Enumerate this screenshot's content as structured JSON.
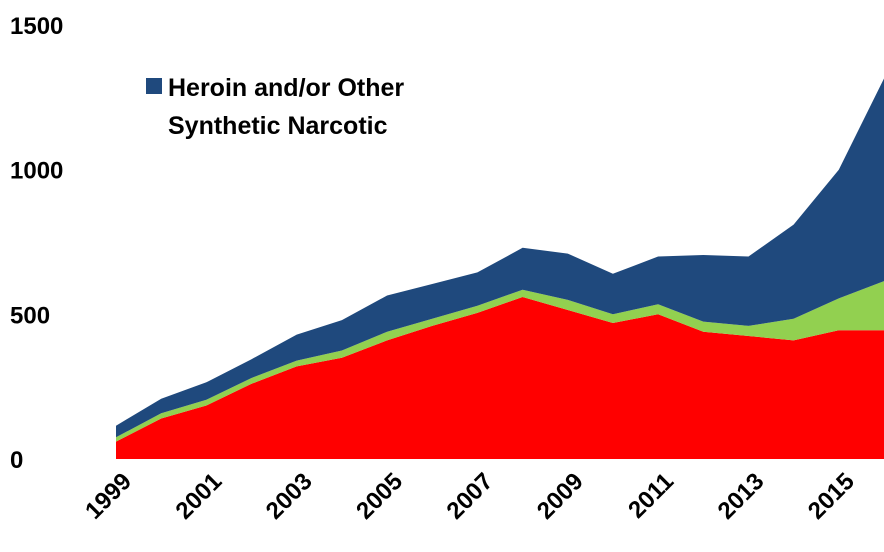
{
  "chart_data": {
    "type": "area",
    "stacked": true,
    "x": [
      1999,
      2000,
      2001,
      2002,
      2003,
      2004,
      2005,
      2006,
      2007,
      2008,
      2009,
      2010,
      2011,
      2012,
      2013,
      2014,
      2015,
      2016
    ],
    "x_tick_labels": [
      "1999",
      "2001",
      "2003",
      "2005",
      "2007",
      "2009",
      "2011",
      "2013",
      "2015"
    ],
    "y_tick_labels": [
      "0",
      "500",
      "1000",
      "1500"
    ],
    "ylim": [
      0,
      1500
    ],
    "grid": false,
    "legend_position": "top-left",
    "series": [
      {
        "values": [
          60,
          140,
          185,
          260,
          320,
          350,
          410,
          460,
          505,
          560,
          515,
          470,
          500,
          440,
          425,
          410,
          445,
          445
        ],
        "color": "#ff0000"
      },
      {
        "values": [
          15,
          18,
          20,
          20,
          20,
          25,
          30,
          25,
          25,
          25,
          35,
          30,
          35,
          35,
          35,
          75,
          110,
          170
        ],
        "color": "#92d050"
      },
      {
        "name_lines": [
          "Heroin and/or Other",
          "Synthetic Narcotic"
        ],
        "values": [
          40,
          50,
          60,
          65,
          90,
          105,
          125,
          120,
          115,
          145,
          160,
          140,
          165,
          230,
          240,
          325,
          445,
          700
        ],
        "color": "#1f497d"
      }
    ]
  }
}
